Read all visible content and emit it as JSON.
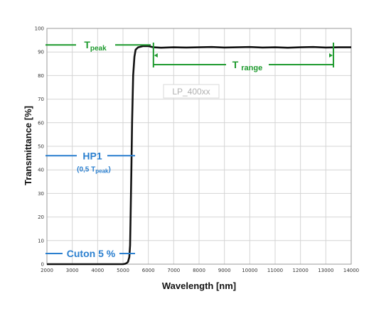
{
  "chart_data": {
    "type": "line",
    "xlabel": "Wavelength [nm]",
    "ylabel": "Transmittance [%]",
    "xlim": [
      2000,
      14000
    ],
    "ylim": [
      0,
      100
    ],
    "xticks": [
      2000,
      3000,
      4000,
      5000,
      6000,
      7000,
      8000,
      9000,
      10000,
      11000,
      12000,
      13000,
      14000
    ],
    "yticks": [
      0,
      10,
      20,
      30,
      40,
      50,
      60,
      70,
      80,
      90,
      100
    ],
    "grid": true,
    "series": [
      {
        "color": "#111111",
        "x": [
          2000,
          5000,
          5100,
          5150,
          5200,
          5250,
          5280,
          5300,
          5330,
          5360,
          5400,
          5450,
          5500,
          5600,
          5800,
          6000,
          6200,
          6500,
          7000,
          7500,
          8000,
          8500,
          9000,
          9500,
          10000,
          10500,
          11000,
          11500,
          12000,
          12500,
          13000,
          13500,
          14000
        ],
        "y": [
          0,
          0,
          0.2,
          0.5,
          1,
          3,
          8,
          20,
          40,
          60,
          80,
          88,
          91,
          92,
          92.5,
          92.5,
          92,
          91.8,
          92,
          91.9,
          92,
          92.1,
          91.9,
          92,
          92.1,
          91.9,
          92,
          91.8,
          92,
          92.1,
          91.9,
          92,
          92
        ]
      }
    ],
    "annotations": {
      "tpeak": {
        "label_main": "T",
        "label_sub": "peak",
        "y": 93,
        "color": "#1e9a2e"
      },
      "trange": {
        "label_main": "T",
        "label_sub": "range",
        "x_from": 6200,
        "x_to": 13300,
        "color": "#1e9a2e"
      },
      "hp1": {
        "label": "HP1",
        "sublabel_open": "(0,5 T",
        "sublabel_sub": "peak",
        "sublabel_close": ")",
        "y": 46,
        "color": "#2a7fcf"
      },
      "cuton": {
        "label": "Cuton 5 %",
        "y": 4.5,
        "color": "#2a7fcf"
      }
    },
    "product_tag": "LP_400xx"
  }
}
